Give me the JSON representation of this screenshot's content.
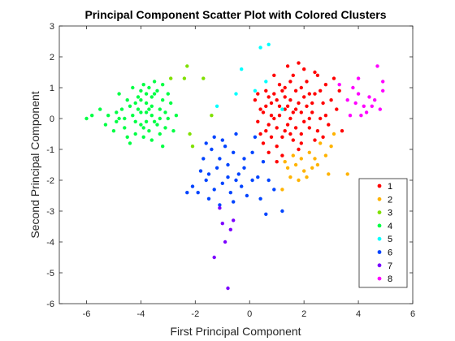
{
  "chart_data": {
    "type": "scatter",
    "title": "Principal Component Scatter Plot with Colored Clusters",
    "xlabel": "First Principal Component",
    "ylabel": "Second Principal Component",
    "xlim": [
      -7,
      6
    ],
    "ylim": [
      -6,
      3
    ],
    "xticks": [
      -6,
      -4,
      -2,
      0,
      2,
      4,
      6
    ],
    "yticks": [
      -6,
      -5,
      -4,
      -3,
      -2,
      -1,
      0,
      1,
      2,
      3
    ],
    "grid": false,
    "legend_position": "bottom-right",
    "series": [
      {
        "name": "1",
        "color": "#ff0000",
        "points": [
          [
            1.2,
            0.9
          ],
          [
            1.5,
            1.2
          ],
          [
            0.8,
            0.5
          ],
          [
            1.9,
            1.0
          ],
          [
            2.1,
            0.4
          ],
          [
            0.7,
            -0.2
          ],
          [
            1.3,
            -0.4
          ],
          [
            2.4,
            0.8
          ],
          [
            0.6,
            0.9
          ],
          [
            1.1,
            0.1
          ],
          [
            1.7,
            0.3
          ],
          [
            2.8,
            1.1
          ],
          [
            0.4,
            -0.5
          ],
          [
            1.0,
            -0.9
          ],
          [
            2.2,
            -0.3
          ],
          [
            1.6,
            -0.7
          ],
          [
            0.9,
            1.4
          ],
          [
            1.4,
            1.7
          ],
          [
            2.5,
            1.4
          ],
          [
            3.0,
            0.6
          ],
          [
            0.5,
            0.2
          ],
          [
            0.3,
            -0.1
          ],
          [
            1.8,
            -1.0
          ],
          [
            2.6,
            0.0
          ],
          [
            1.2,
            -1.2
          ],
          [
            0.7,
            -1.1
          ],
          [
            2.0,
            1.6
          ],
          [
            1.0,
            0.6
          ],
          [
            1.5,
            0.0
          ],
          [
            2.3,
            0.2
          ],
          [
            0.8,
            -0.6
          ],
          [
            1.9,
            -0.5
          ],
          [
            2.9,
            -0.2
          ],
          [
            3.2,
            0.3
          ],
          [
            1.3,
            0.7
          ],
          [
            0.6,
            0.4
          ],
          [
            2.1,
            1.2
          ],
          [
            1.7,
            0.9
          ],
          [
            2.7,
            0.5
          ],
          [
            0.9,
            0.0
          ],
          [
            1.4,
            -0.2
          ],
          [
            2.4,
            -0.7
          ],
          [
            3.4,
            -0.4
          ],
          [
            0.2,
            0.6
          ],
          [
            1.1,
            1.1
          ],
          [
            1.8,
            0.5
          ],
          [
            2.2,
            0.8
          ],
          [
            1.6,
            1.4
          ],
          [
            0.5,
            -0.8
          ],
          [
            1.0,
            -0.3
          ],
          [
            3.1,
            1.3
          ],
          [
            2.0,
            -0.1
          ],
          [
            1.3,
            0.3
          ],
          [
            0.7,
            0.7
          ],
          [
            1.9,
            0.2
          ],
          [
            2.5,
            -0.4
          ],
          [
            1.5,
            0.6
          ],
          [
            2.8,
            0.1
          ],
          [
            1.2,
            -0.6
          ],
          [
            0.4,
            0.3
          ],
          [
            1.7,
            -0.3
          ],
          [
            2.3,
            0.5
          ],
          [
            1.1,
            0.4
          ],
          [
            2.6,
            0.9
          ],
          [
            0.9,
            0.8
          ],
          [
            1.4,
            0.4
          ],
          [
            2.0,
            0.7
          ],
          [
            1.6,
            0.2
          ],
          [
            0.8,
            0.1
          ],
          [
            2.2,
            0.0
          ],
          [
            1.8,
            1.8
          ],
          [
            3.3,
            0.9
          ],
          [
            1.0,
            -1.4
          ],
          [
            2.4,
            1.5
          ],
          [
            0.6,
            -0.4
          ],
          [
            1.3,
            1.0
          ],
          [
            1.9,
            -0.8
          ],
          [
            2.7,
            -0.6
          ],
          [
            1.5,
            -0.5
          ],
          [
            0.3,
            0.8
          ]
        ]
      },
      {
        "name": "2",
        "color": "#ffb300",
        "points": [
          [
            1.9,
            -1.3
          ],
          [
            2.2,
            -1.1
          ],
          [
            2.5,
            -1.5
          ],
          [
            2.0,
            -1.7
          ],
          [
            1.5,
            -1.9
          ],
          [
            1.2,
            -2.3
          ],
          [
            2.8,
            -1.2
          ],
          [
            3.0,
            -0.9
          ],
          [
            2.6,
            -0.8
          ],
          [
            1.8,
            -2.0
          ],
          [
            1.4,
            -1.6
          ],
          [
            2.3,
            -1.6
          ],
          [
            2.9,
            -1.8
          ],
          [
            3.1,
            -0.5
          ],
          [
            1.3,
            -1.4
          ],
          [
            2.1,
            -1.9
          ],
          [
            1.6,
            -1.2
          ],
          [
            3.6,
            -1.8
          ],
          [
            2.4,
            -1.3
          ],
          [
            1.7,
            -1.5
          ]
        ]
      },
      {
        "name": "3",
        "color": "#80e000",
        "points": [
          [
            -2.3,
            1.7
          ],
          [
            -1.7,
            1.3
          ],
          [
            -2.9,
            1.3
          ],
          [
            -2.4,
            1.3
          ],
          [
            -2.1,
            -0.9
          ],
          [
            -2.2,
            -0.5
          ],
          [
            -1.4,
            0.1
          ]
        ]
      },
      {
        "name": "4",
        "color": "#00ff44",
        "points": [
          [
            -4.0,
            0.2
          ],
          [
            -3.8,
            0.5
          ],
          [
            -3.6,
            0.1
          ],
          [
            -4.2,
            -0.1
          ],
          [
            -3.5,
            0.8
          ],
          [
            -3.9,
            -0.3
          ],
          [
            -4.4,
            0.4
          ],
          [
            -3.3,
            0.3
          ],
          [
            -3.7,
            1.0
          ],
          [
            -4.1,
            0.7
          ],
          [
            -3.4,
            -0.2
          ],
          [
            -4.6,
            0.0
          ],
          [
            -3.2,
            0.6
          ],
          [
            -3.9,
            -0.6
          ],
          [
            -4.3,
            1.0
          ],
          [
            -3.6,
            0.4
          ],
          [
            -3.8,
            -0.1
          ],
          [
            -4.0,
            0.9
          ],
          [
            -3.1,
            0.2
          ],
          [
            -4.7,
            0.3
          ],
          [
            -3.5,
            1.2
          ],
          [
            -4.2,
            -0.5
          ],
          [
            -3.7,
            -0.4
          ],
          [
            -4.5,
            0.6
          ],
          [
            -3.0,
            0.0
          ],
          [
            -3.3,
            -0.5
          ],
          [
            -3.8,
            0.2
          ],
          [
            -4.1,
            0.3
          ],
          [
            -3.6,
            0.7
          ],
          [
            -4.0,
            -0.2
          ],
          [
            -5.2,
            0.1
          ],
          [
            -5.5,
            0.3
          ],
          [
            -4.9,
            -0.1
          ],
          [
            -5.0,
            -0.4
          ],
          [
            -5.8,
            0.1
          ],
          [
            -6.0,
            0.0
          ],
          [
            -4.8,
            0.8
          ],
          [
            -2.8,
            -0.4
          ],
          [
            -2.9,
            0.5
          ],
          [
            -3.2,
            1.1
          ],
          [
            -4.4,
            -0.8
          ],
          [
            -3.9,
            1.1
          ],
          [
            -4.6,
            -0.3
          ],
          [
            -3.4,
            0.9
          ],
          [
            -3.1,
            -0.3
          ],
          [
            -4.2,
            0.5
          ],
          [
            -3.7,
            0.3
          ],
          [
            -4.0,
            0.6
          ],
          [
            -3.5,
            -0.1
          ],
          [
            -3.3,
            0.0
          ],
          [
            -4.8,
            0.0
          ],
          [
            -3.8,
            0.8
          ],
          [
            -4.3,
            0.1
          ],
          [
            -3.6,
            -0.7
          ],
          [
            -2.7,
            0.1
          ],
          [
            -4.9,
            0.2
          ],
          [
            -3.0,
            0.8
          ],
          [
            -3.2,
            -0.9
          ],
          [
            -4.5,
            -0.6
          ],
          [
            -5.3,
            -0.2
          ]
        ]
      },
      {
        "name": "5",
        "color": "#00ffff",
        "points": [
          [
            0.7,
            2.4
          ],
          [
            0.4,
            2.3
          ],
          [
            -0.3,
            1.6
          ],
          [
            0.6,
            1.2
          ],
          [
            -1.2,
            0.4
          ],
          [
            -0.5,
            0.8
          ],
          [
            0.2,
            0.9
          ],
          [
            1.2,
            0.3
          ]
        ]
      },
      {
        "name": "6",
        "color": "#0044ff",
        "points": [
          [
            -0.8,
            -1.5
          ],
          [
            -1.1,
            -1.3
          ],
          [
            -0.5,
            -2.0
          ],
          [
            -1.5,
            -1.8
          ],
          [
            -0.9,
            -0.9
          ],
          [
            -1.3,
            -2.3
          ],
          [
            -0.2,
            -1.6
          ],
          [
            -1.0,
            -2.1
          ],
          [
            -0.6,
            -1.1
          ],
          [
            -1.7,
            -1.3
          ],
          [
            -1.9,
            -2.4
          ],
          [
            -0.4,
            -1.8
          ],
          [
            -1.2,
            -1.6
          ],
          [
            0.1,
            -1.1
          ],
          [
            -0.7,
            -2.4
          ],
          [
            -1.4,
            -1.0
          ],
          [
            0.3,
            -1.9
          ],
          [
            -1.6,
            -2.0
          ],
          [
            -0.3,
            -2.2
          ],
          [
            -1.8,
            -1.7
          ],
          [
            0.6,
            -3.1
          ],
          [
            1.2,
            -3.0
          ],
          [
            -0.1,
            -2.5
          ],
          [
            -1.0,
            -0.7
          ],
          [
            0.5,
            -1.4
          ],
          [
            -2.1,
            -2.2
          ],
          [
            -0.8,
            -1.9
          ],
          [
            0.9,
            -2.3
          ],
          [
            -1.3,
            -0.6
          ],
          [
            -0.5,
            -0.5
          ],
          [
            0.2,
            -0.6
          ],
          [
            -1.5,
            -2.6
          ],
          [
            0.7,
            -2.0
          ],
          [
            -0.2,
            -1.3
          ],
          [
            -1.1,
            -2.8
          ],
          [
            -2.3,
            -2.4
          ],
          [
            0.4,
            -2.6
          ],
          [
            -0.6,
            -2.7
          ],
          [
            -1.6,
            -0.8
          ],
          [
            0.1,
            -2.0
          ]
        ]
      },
      {
        "name": "7",
        "color": "#7b00ff",
        "points": [
          [
            -0.8,
            -5.5
          ],
          [
            -1.3,
            -4.5
          ],
          [
            -1.0,
            -3.4
          ],
          [
            -0.7,
            -3.6
          ],
          [
            -0.9,
            -4.0
          ],
          [
            -1.1,
            -2.9
          ],
          [
            -0.6,
            -3.3
          ]
        ]
      },
      {
        "name": "8",
        "color": "#ff00ff",
        "points": [
          [
            3.6,
            0.6
          ],
          [
            3.9,
            0.5
          ],
          [
            4.2,
            0.4
          ],
          [
            4.0,
            0.8
          ],
          [
            4.3,
            0.2
          ],
          [
            3.7,
            0.1
          ],
          [
            4.5,
            0.4
          ],
          [
            4.9,
            0.9
          ],
          [
            4.8,
            0.3
          ],
          [
            4.4,
            0.7
          ],
          [
            3.3,
            1.1
          ],
          [
            4.1,
            0.1
          ],
          [
            4.7,
            1.7
          ],
          [
            4.9,
            1.2
          ],
          [
            4.0,
            1.3
          ],
          [
            3.8,
            1.0
          ],
          [
            4.6,
            0.6
          ]
        ]
      }
    ]
  }
}
